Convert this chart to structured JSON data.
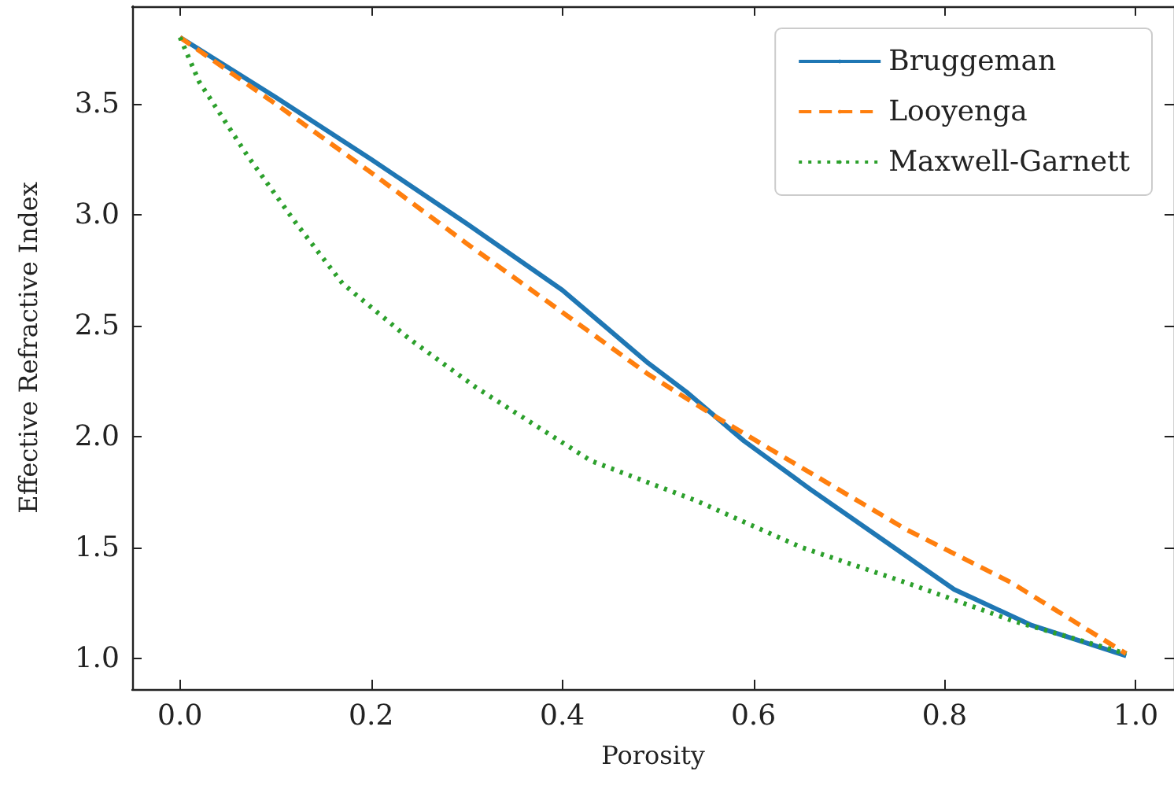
{
  "chart_data": {
    "type": "line",
    "xlabel": "Porosity",
    "ylabel": "Effective Refractive Index",
    "xlim": [
      -0.05,
      1.04
    ],
    "xticks": [
      {
        "value": 0,
        "label": "0.0"
      },
      0.2,
      0.4,
      0.6,
      0.8,
      {
        "value": 1,
        "label": "1.0"
      }
    ],
    "ylim": [
      0.86,
      3.94
    ],
    "yticks": [
      {
        "value": 1,
        "label": "1.0"
      },
      1.5,
      {
        "value": 2,
        "label": "2.0"
      },
      2.5,
      {
        "value": 3,
        "label": "3.0"
      },
      3.5
    ],
    "grid": false,
    "legend": "top right",
    "marker": "none",
    "series": [
      {
        "name": "Bruggeman",
        "color": "#1f77b4",
        "line_style": "solid",
        "x": [
          0,
          0.1,
          0.2,
          0.3,
          0.4,
          0.49,
          0.53,
          0.59,
          0.66,
          0.74,
          0.81,
          0.89,
          0.99
        ],
        "values": [
          3.8,
          3.53,
          3.25,
          2.96,
          2.66,
          2.33,
          2.2,
          1.98,
          1.76,
          1.52,
          1.31,
          1.15,
          1.01
        ]
      },
      {
        "name": "Looyenga",
        "color": "#ff7f0e",
        "line_style": "dashed",
        "x": [
          0,
          0.1,
          0.2,
          0.3,
          0.4,
          0.49,
          0.56,
          0.65,
          0.76,
          0.87,
          0.99
        ],
        "values": [
          3.8,
          3.5,
          3.19,
          2.87,
          2.56,
          2.28,
          2.09,
          1.86,
          1.58,
          1.34,
          1.02
        ]
      },
      {
        "name": "Maxwell-Garnett",
        "color": "#2ca02c",
        "line_style": "dotted",
        "x": [
          0,
          0.02,
          0.07,
          0.12,
          0.17,
          0.24,
          0.31,
          0.43,
          0.54,
          0.65,
          0.76,
          0.87,
          0.99
        ],
        "values": [
          3.8,
          3.6,
          3.27,
          2.97,
          2.69,
          2.44,
          2.22,
          1.89,
          1.71,
          1.5,
          1.34,
          1.17,
          1.02
        ]
      }
    ]
  }
}
